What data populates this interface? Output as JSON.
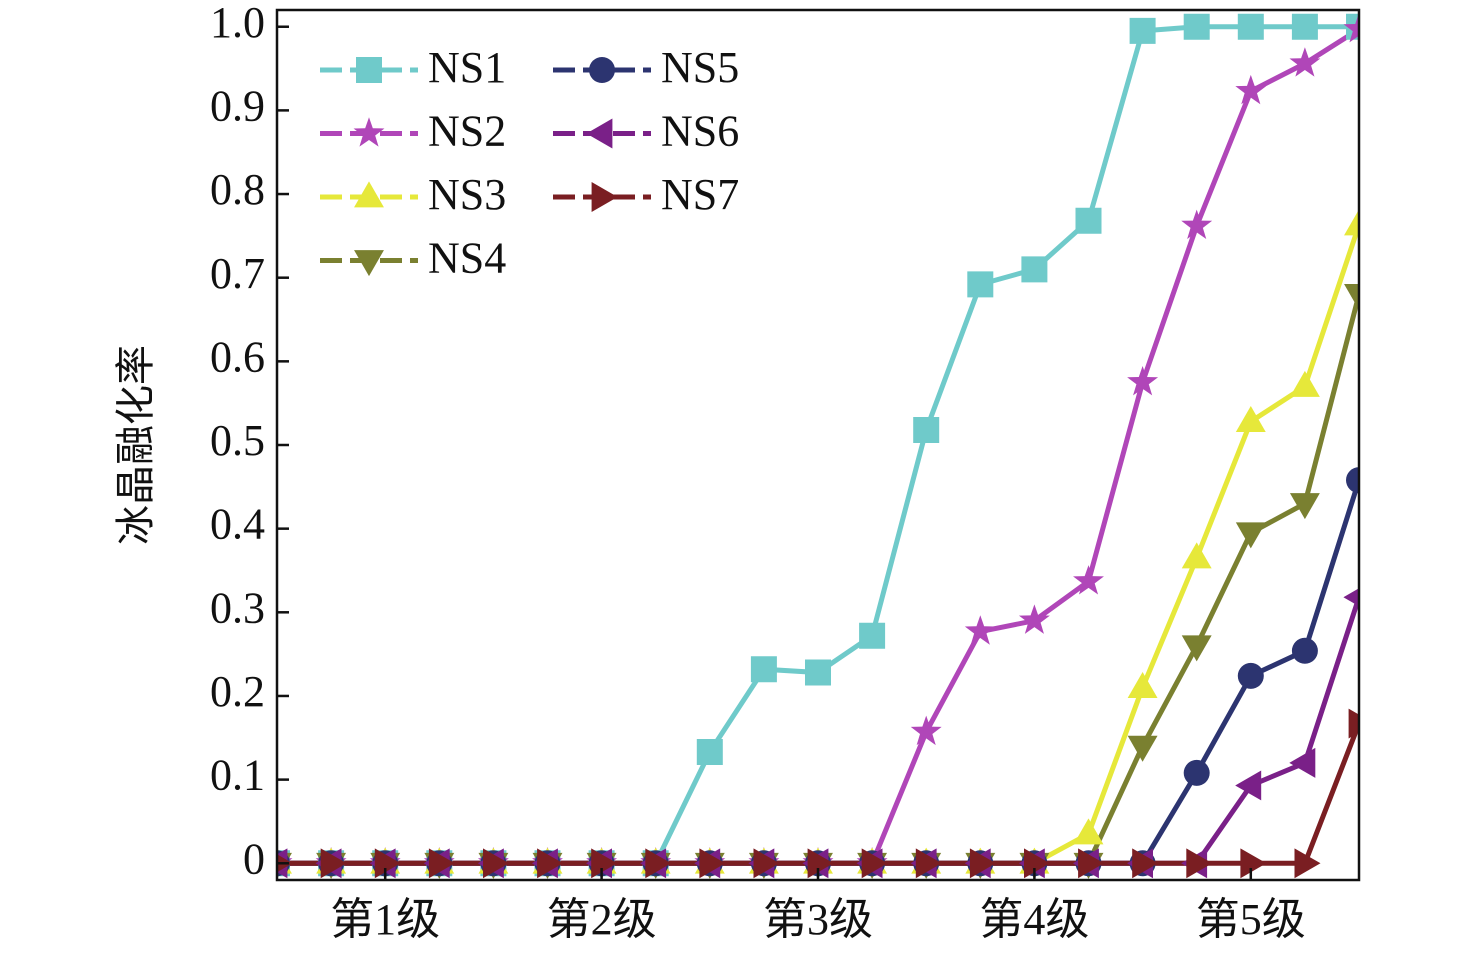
{
  "chart_data": {
    "type": "line",
    "ylabel": "冰晶融化率",
    "x": [
      0,
      1,
      2,
      3,
      4,
      5,
      6,
      7,
      8,
      9,
      10,
      11,
      12,
      13,
      14,
      15,
      16,
      17,
      18,
      19,
      20
    ],
    "xlim": [
      0,
      20
    ],
    "xticks": [
      {
        "value": 2,
        "label": "第1级"
      },
      {
        "value": 6,
        "label": "第2级"
      },
      {
        "value": 10,
        "label": "第3级"
      },
      {
        "value": 14,
        "label": "第4级"
      },
      {
        "value": 18,
        "label": "第5级"
      }
    ],
    "ylim": [
      -0.02,
      1.02
    ],
    "yticks": [
      0,
      0.1,
      0.2,
      0.3,
      0.4,
      0.5,
      0.6,
      0.7,
      0.8,
      0.9,
      {
        "value": 1,
        "label": "1.0"
      }
    ],
    "legend": "upper left",
    "series": [
      {
        "name": "NS1",
        "color": "#6fcaca",
        "marker": "square",
        "values": [
          0,
          0,
          0,
          0,
          0,
          0,
          0,
          0,
          0.133,
          0.232,
          0.228,
          0.272,
          0.518,
          0.692,
          0.71,
          0.768,
          0.995,
          1,
          1,
          1,
          1
        ]
      },
      {
        "name": "NS2",
        "color": "#b046b8",
        "marker": "star",
        "values": [
          0,
          0,
          0,
          0,
          0,
          0,
          0,
          0,
          0,
          0,
          0,
          0,
          0.157,
          0.277,
          0.29,
          0.337,
          0.575,
          0.762,
          0.923,
          0.956,
          0.997
        ]
      },
      {
        "name": "NS3",
        "color": "#e6e83a",
        "marker": "triangle-up",
        "values": [
          0,
          0,
          0,
          0,
          0,
          0,
          0,
          0,
          0,
          0,
          0,
          0,
          0,
          0,
          0,
          0.035,
          0.21,
          0.365,
          0.528,
          0.57,
          0.763
        ]
      },
      {
        "name": "NS4",
        "color": "#7a8030",
        "marker": "triangle-down",
        "values": [
          0,
          0,
          0,
          0,
          0,
          0,
          0,
          0,
          0,
          0,
          0,
          0,
          0,
          0,
          0,
          0,
          0.14,
          0.26,
          0.395,
          0.43,
          0.68
        ]
      },
      {
        "name": "NS5",
        "color": "#2c3470",
        "marker": "circle",
        "values": [
          0,
          0,
          0,
          0,
          0,
          0,
          0,
          0,
          0,
          0,
          0,
          0,
          0,
          0,
          0,
          0,
          0,
          0.108,
          0.224,
          0.254,
          0.458
        ]
      },
      {
        "name": "NS6",
        "color": "#7a2088",
        "marker": "triangle-left",
        "values": [
          0,
          0,
          0,
          0,
          0,
          0,
          0,
          0,
          0,
          0,
          0,
          0,
          0,
          0,
          0,
          0,
          0,
          0,
          0.093,
          0.12,
          0.318
        ]
      },
      {
        "name": "NS7",
        "color": "#7a1e22",
        "marker": "triangle-right",
        "values": [
          0,
          0,
          0,
          0,
          0,
          0,
          0,
          0,
          0,
          0,
          0,
          0,
          0,
          0,
          0,
          0,
          0,
          0,
          0,
          0,
          0.167
        ]
      }
    ]
  }
}
